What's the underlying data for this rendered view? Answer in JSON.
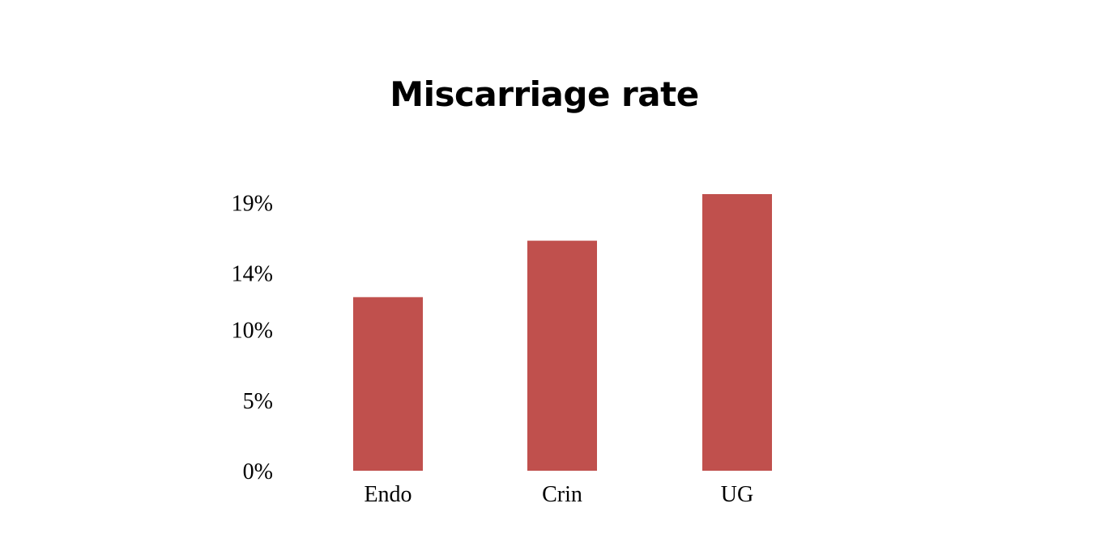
{
  "chart_data": {
    "type": "bar",
    "title": "Miscarriage rate",
    "categories": [
      "Endo",
      "Crin",
      "UG"
    ],
    "values": [
      12.3,
      16.3,
      19.6
    ],
    "xlabel": "",
    "ylabel": "",
    "ylim": [
      0,
      19.6
    ],
    "yticks": [
      0,
      5,
      10,
      14,
      19
    ],
    "ytick_labels": [
      "0%",
      "5%",
      "10%",
      "14%",
      "19%"
    ],
    "bar_color": "#C0504D",
    "grid": false,
    "legend": "none"
  }
}
